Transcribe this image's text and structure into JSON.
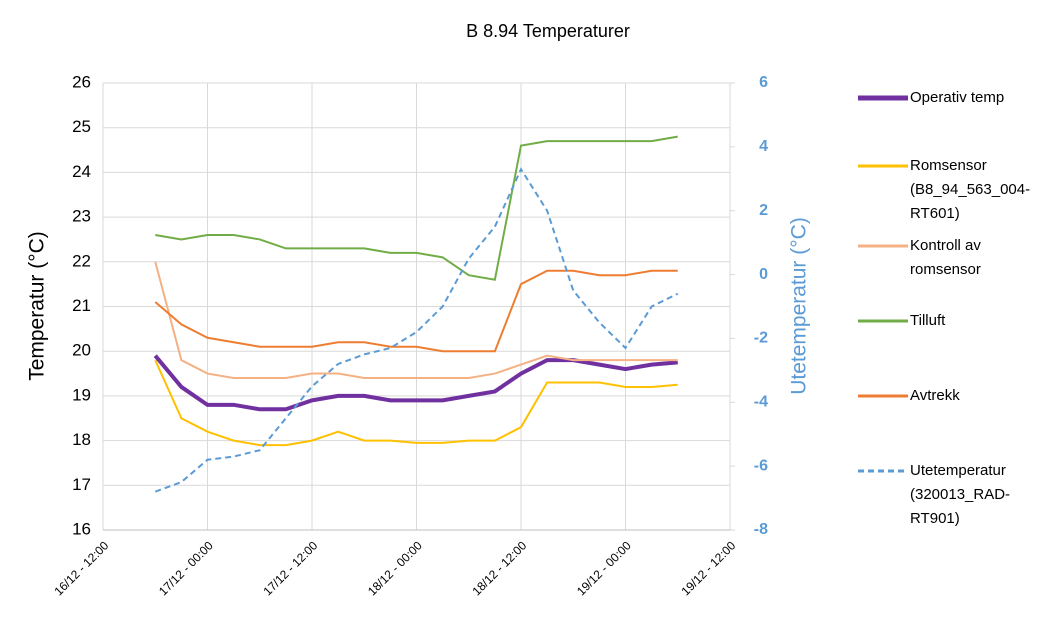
{
  "chart_data": {
    "type": "line",
    "title": "B 8.94 Temperaturer",
    "y_label": "Temperatur  (°C)",
    "y2_label": "Utetemperatur  (°C)",
    "x": [
      "16/12 - 18:00",
      "16/12 - 21:00",
      "17/12 - 00:00",
      "17/12 - 03:00",
      "17/12 - 06:00",
      "17/12 - 09:00",
      "17/12 - 12:00",
      "17/12 - 15:00",
      "17/12 - 18:00",
      "17/12 - 21:00",
      "18/12 - 00:00",
      "18/12 - 03:00",
      "18/12 - 06:00",
      "18/12 - 09:00",
      "18/12 - 12:00",
      "18/12 - 15:00",
      "18/12 - 18:00",
      "18/12 - 21:00",
      "19/12 - 00:00",
      "19/12 - 03:00",
      "19/12 - 06:00"
    ],
    "xlim": [
      "16/12 - 12:00",
      "19/12 - 12:00"
    ],
    "xticks": [
      "16/12 - 12:00",
      "17/12 - 00:00",
      "17/12 - 12:00",
      "18/12 - 00:00",
      "18/12 - 12:00",
      "19/12 - 00:00",
      "19/12 - 12:00"
    ],
    "ylim": [
      16,
      26
    ],
    "yticks": [
      16,
      17,
      18,
      19,
      20,
      21,
      22,
      23,
      24,
      25,
      26
    ],
    "y2lim": [
      -8,
      6
    ],
    "y2ticks": [
      -8,
      -6,
      -4,
      -2,
      0,
      2,
      4,
      6
    ],
    "grid": true,
    "legend": "right",
    "series": [
      {
        "name": "Operativ temp",
        "color": "#7030a0",
        "width": 4,
        "values": [
          19.9,
          19.2,
          18.8,
          18.8,
          18.7,
          18.7,
          18.9,
          19.0,
          19.0,
          18.9,
          18.9,
          18.9,
          19.0,
          19.1,
          19.5,
          19.8,
          19.8,
          19.7,
          19.6,
          19.7,
          19.75
        ]
      },
      {
        "name": "Romsensor (B8_94_563_004-RT601)",
        "color": "#ffc000",
        "width": 2,
        "values": [
          19.8,
          18.5,
          18.2,
          18.0,
          17.9,
          17.9,
          18.0,
          18.2,
          18.0,
          18.0,
          17.95,
          17.95,
          18.0,
          18.0,
          18.3,
          19.3,
          19.3,
          19.3,
          19.2,
          19.2,
          19.25
        ]
      },
      {
        "name": "Kontroll av romsensor",
        "color": "#f4b183",
        "width": 2,
        "values": [
          22.0,
          19.8,
          19.5,
          19.4,
          19.4,
          19.4,
          19.5,
          19.5,
          19.4,
          19.4,
          19.4,
          19.4,
          19.4,
          19.5,
          19.7,
          19.9,
          19.8,
          19.8,
          19.8,
          19.8,
          19.8
        ]
      },
      {
        "name": "Tilluft",
        "color": "#70ad47",
        "width": 2,
        "values": [
          22.6,
          22.5,
          22.6,
          22.6,
          22.5,
          22.3,
          22.3,
          22.3,
          22.3,
          22.2,
          22.2,
          22.1,
          21.7,
          21.6,
          24.6,
          24.7,
          24.7,
          24.7,
          24.7,
          24.7,
          24.8
        ]
      },
      {
        "name": "Avtrekk",
        "color": "#ed7d31",
        "width": 2,
        "values": [
          21.1,
          20.6,
          20.3,
          20.2,
          20.1,
          20.1,
          20.1,
          20.2,
          20.2,
          20.1,
          20.1,
          20.0,
          20.0,
          20.0,
          21.5,
          21.8,
          21.8,
          21.7,
          21.7,
          21.8,
          21.8
        ]
      },
      {
        "name": "Utetemperatur (320013_RAD-RT901)",
        "color": "#5b9bd5",
        "width": 2,
        "dashed": true,
        "axis": "y2",
        "values": [
          -6.8,
          -6.5,
          -5.8,
          -5.7,
          -5.5,
          -4.5,
          -3.5,
          -2.8,
          -2.5,
          -2.3,
          -1.8,
          -1.0,
          0.5,
          1.5,
          3.3,
          2.0,
          -0.5,
          -1.5,
          -2.3,
          -1.0,
          -0.6
        ]
      }
    ]
  }
}
